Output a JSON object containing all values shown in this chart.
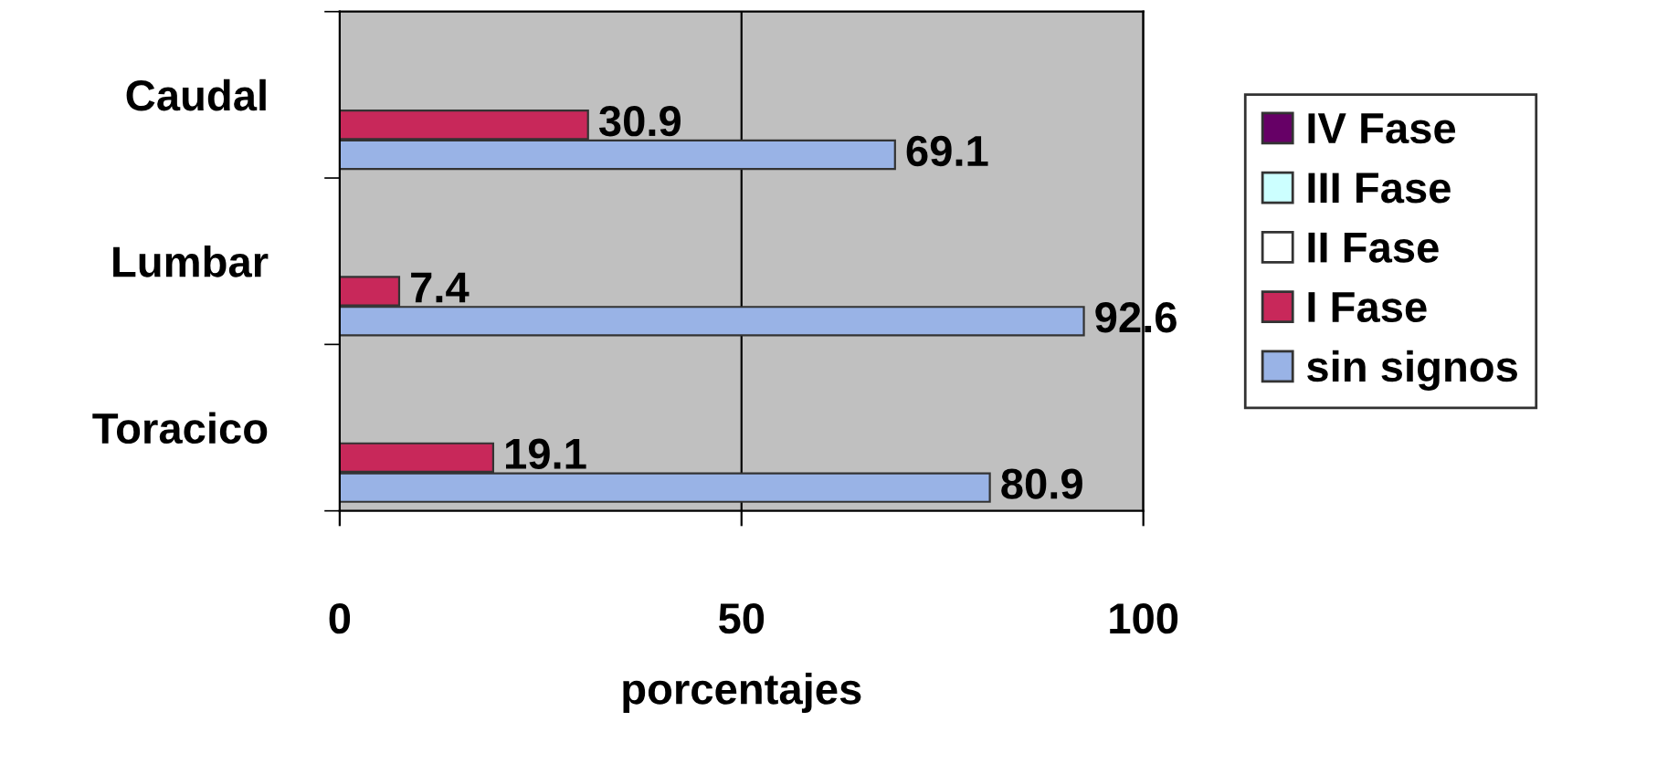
{
  "chart_data": {
    "type": "bar",
    "orientation": "horizontal",
    "xlabel": "porcentajes",
    "categories": [
      "Caudal",
      "Lumbar",
      "Toracico"
    ],
    "series": [
      {
        "name": "sin signos",
        "color": "#99b3e6",
        "values": [
          69.1,
          92.6,
          80.9
        ]
      },
      {
        "name": "I Fase",
        "color": "#c8285a",
        "values": [
          30.9,
          7.4,
          19.1
        ]
      },
      {
        "name": "II Fase",
        "color": "#ffffff",
        "values": [
          null,
          null,
          null
        ]
      },
      {
        "name": "III Fase",
        "color": "#ccffff",
        "values": [
          null,
          null,
          null
        ]
      },
      {
        "name": "IV Fase",
        "color": "#660066",
        "values": [
          null,
          null,
          null
        ]
      }
    ],
    "xlim": [
      0,
      100
    ],
    "xticks": [
      0,
      50,
      100
    ],
    "grid": "x",
    "legend": "right",
    "data_labels": true
  }
}
